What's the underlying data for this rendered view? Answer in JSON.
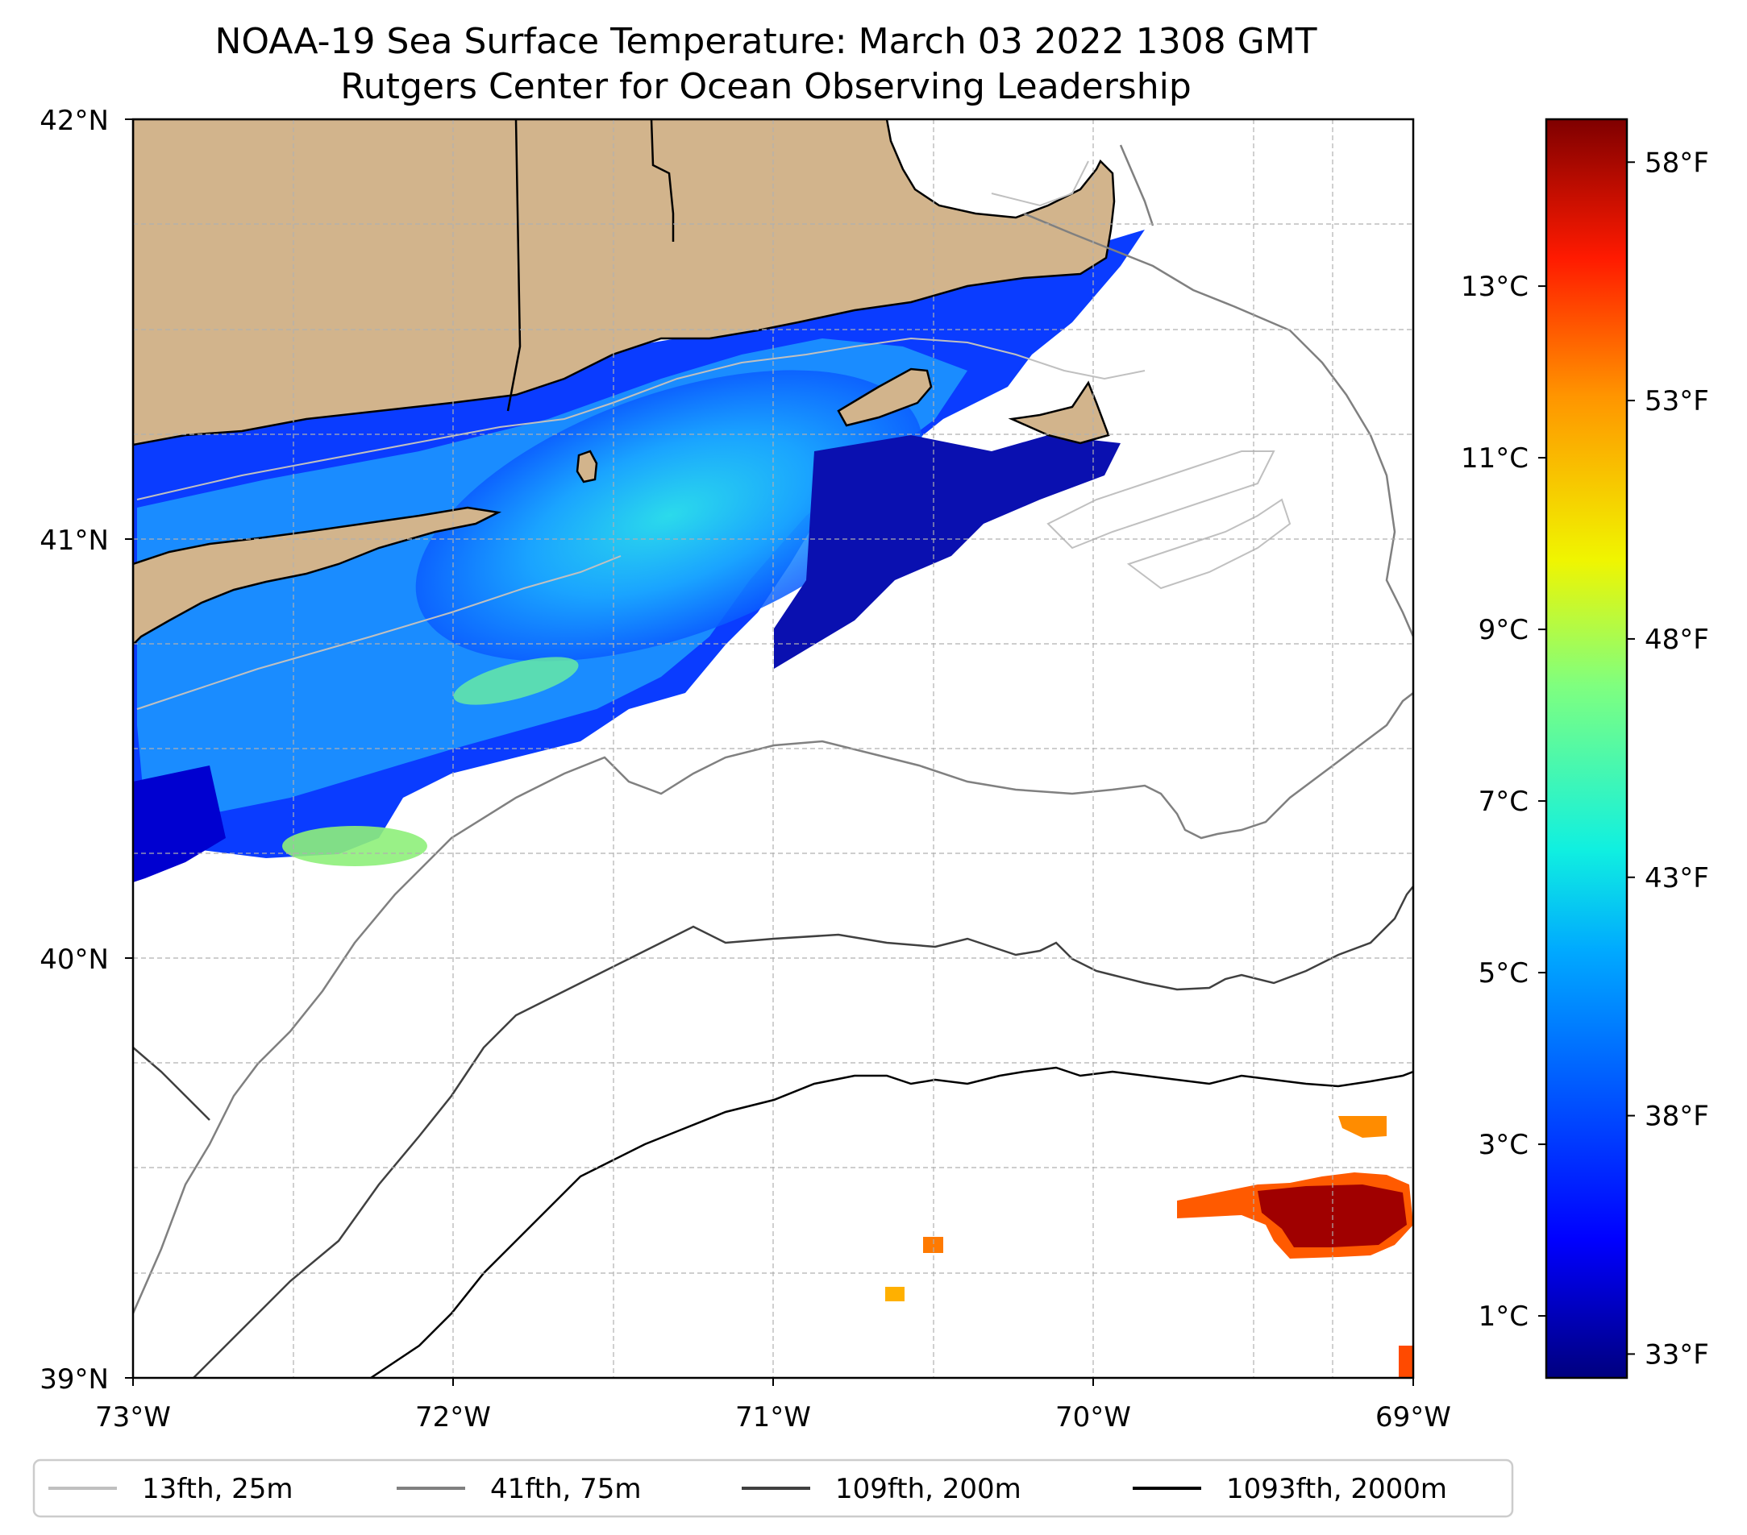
{
  "title": {
    "line1": "NOAA-19 Sea Surface Temperature: March 03 2022 1308 GMT",
    "line2": "Rutgers Center for Ocean Observing Leadership"
  },
  "axes": {
    "latitude_ticks": [
      "42°N",
      "41°N",
      "40°N",
      "39°N"
    ],
    "longitude_ticks": [
      "73°W",
      "72°W",
      "71°W",
      "70°W",
      "69°W"
    ],
    "lat_range": [
      39,
      42
    ],
    "lon_range": [
      -73,
      -69
    ]
  },
  "colorbar": {
    "colormap": "jet",
    "celsius_ticks": [
      {
        "value": 1,
        "label": "1°C"
      },
      {
        "value": 3,
        "label": "3°C"
      },
      {
        "value": 5,
        "label": "5°C"
      },
      {
        "value": 7,
        "label": "7°C"
      },
      {
        "value": 9,
        "label": "9°C"
      },
      {
        "value": 11,
        "label": "11°C"
      },
      {
        "value": 13,
        "label": "13°C"
      }
    ],
    "fahrenheit_ticks": [
      {
        "value": 33,
        "label": "33°F"
      },
      {
        "value": 38,
        "label": "38°F"
      },
      {
        "value": 43,
        "label": "43°F"
      },
      {
        "value": 48,
        "label": "48°F"
      },
      {
        "value": 53,
        "label": "53°F"
      },
      {
        "value": 58,
        "label": "58°F"
      }
    ],
    "range_f": [
      32.5,
      58.9
    ]
  },
  "legend": {
    "items": [
      {
        "label": "13fth, 25m",
        "color": "#c0c0c0"
      },
      {
        "label": "41fth, 75m",
        "color": "#808080"
      },
      {
        "label": "109fth, 200m",
        "color": "#404040"
      },
      {
        "label": "1093fth, 2000m",
        "color": "#000000"
      }
    ]
  },
  "colors": {
    "land": "#d2b48c",
    "cold_water": "#0000ff",
    "cool_water": "#1e90ff",
    "mid_water": "#00d4ff",
    "warm_water": "#ff4500",
    "hot_water": "#a00000"
  }
}
